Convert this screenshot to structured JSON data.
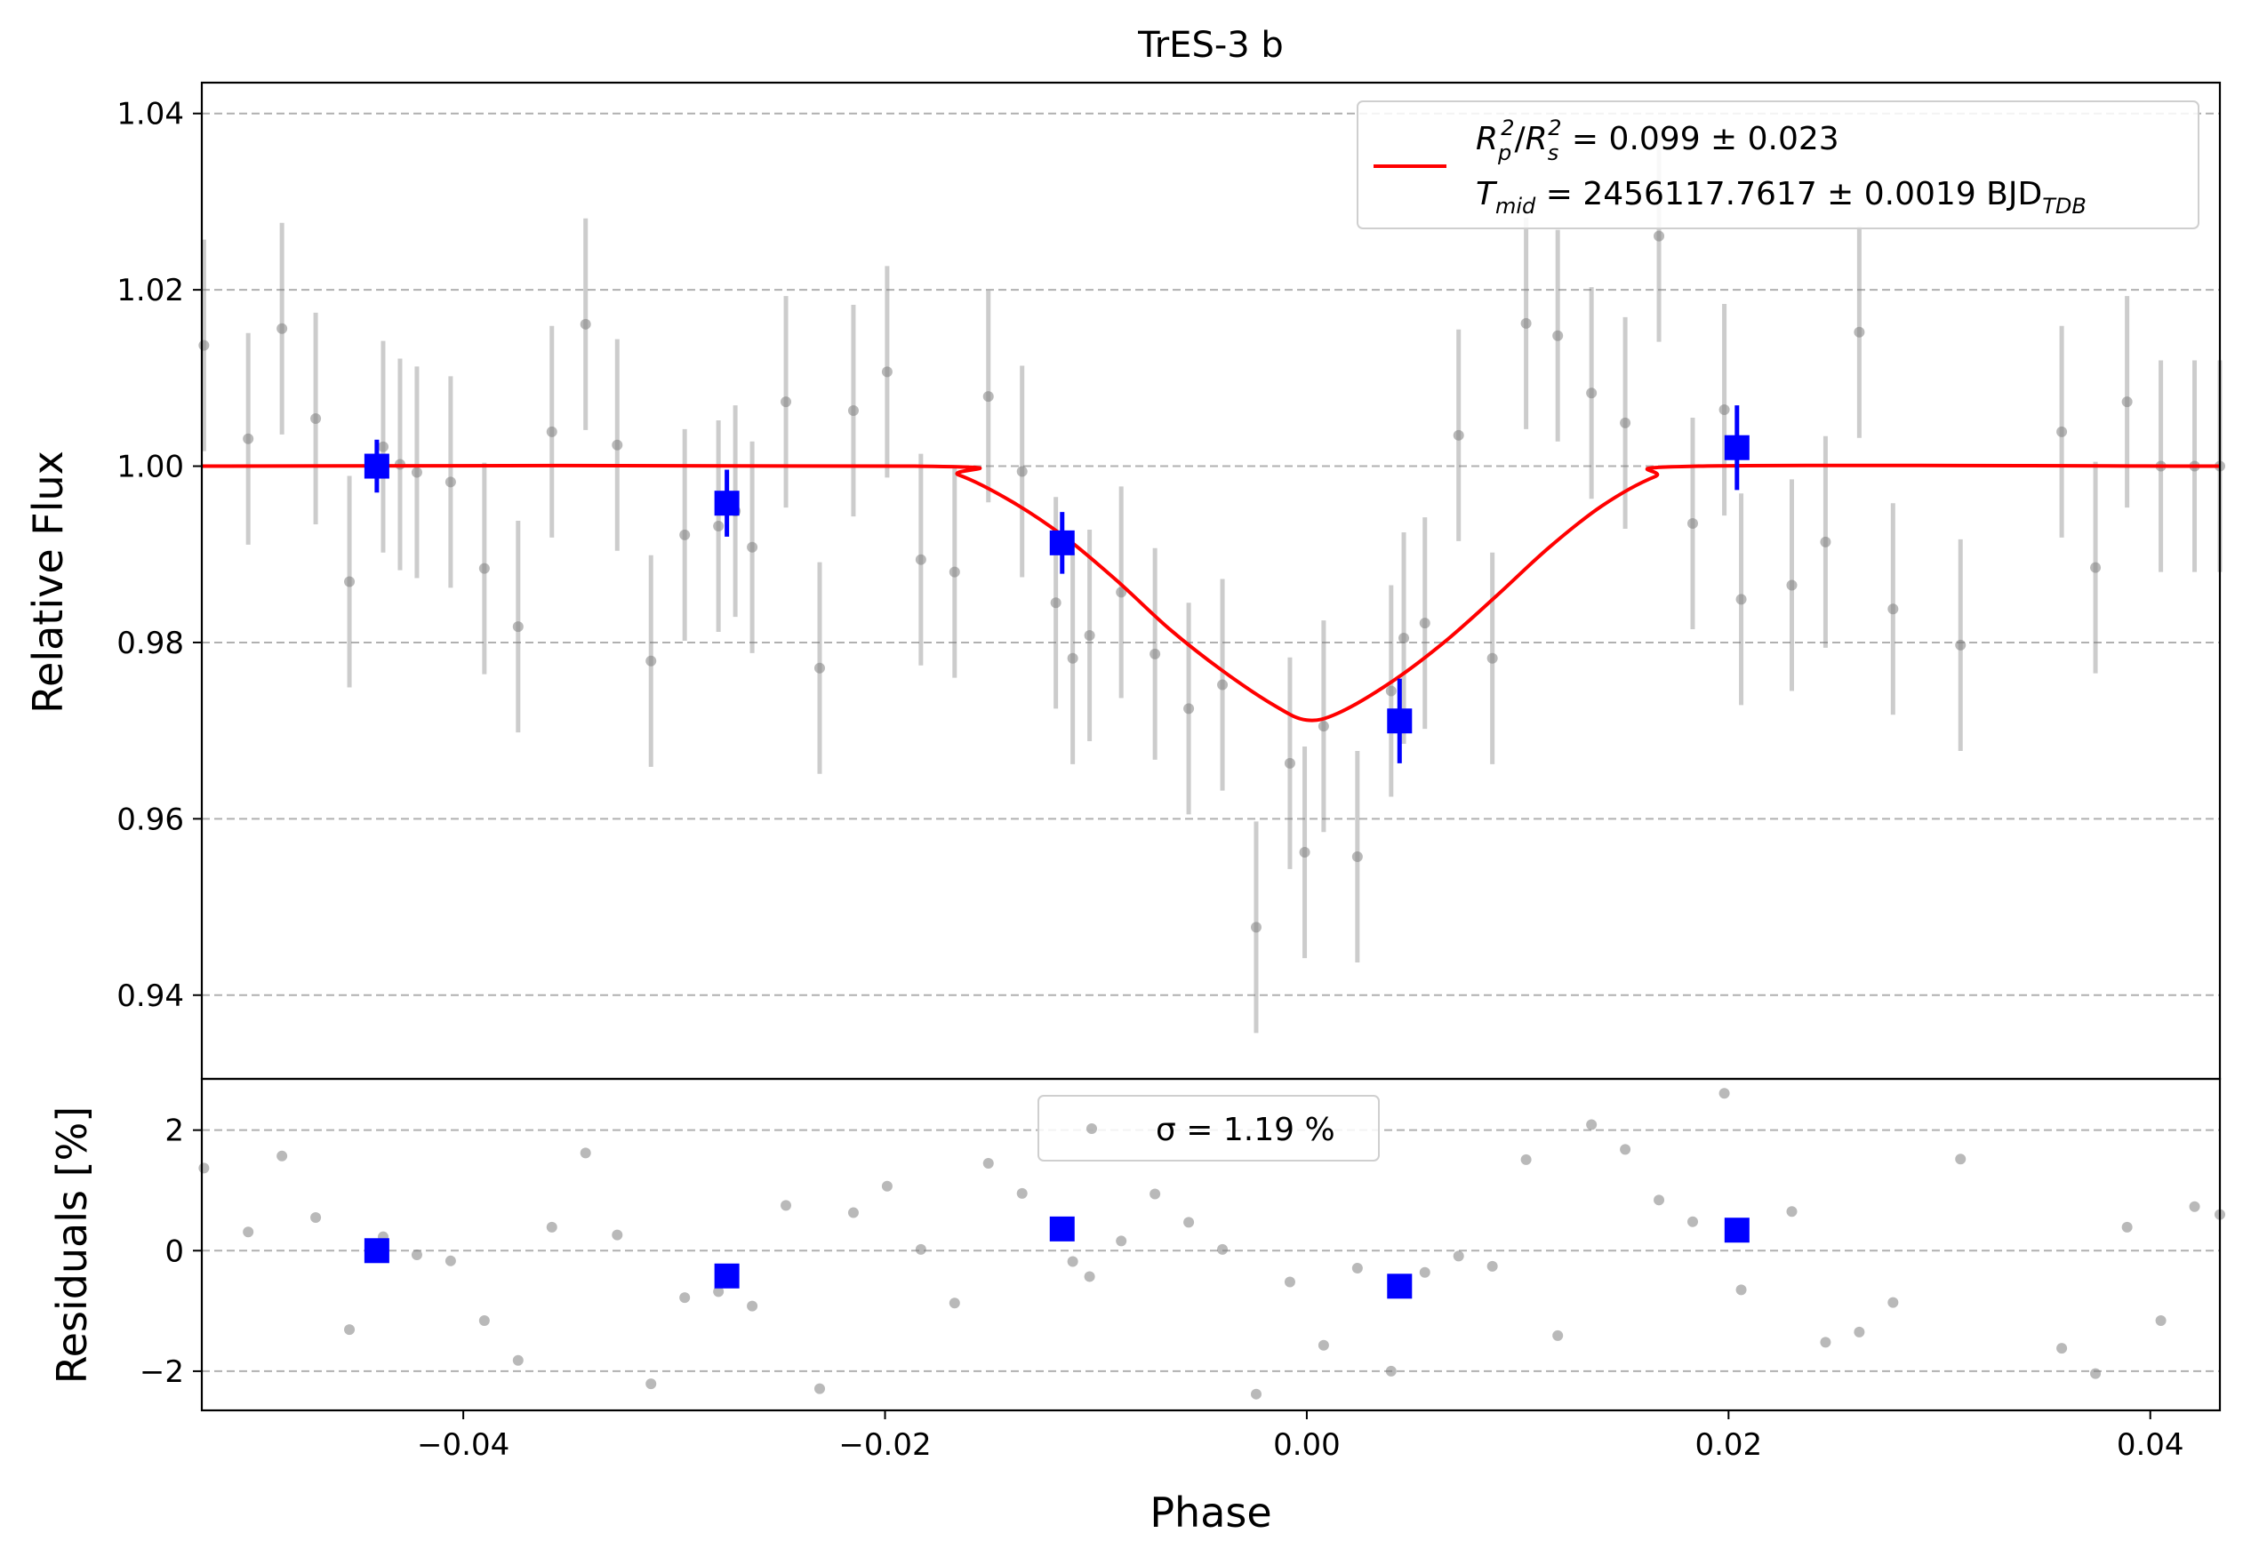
{
  "chart_data": [
    {
      "type": "scatter",
      "title": "TrES-3 b",
      "ylabel": "Relative Flux",
      "xlim": [
        -0.0524,
        0.0433
      ],
      "ylim": [
        0.9305,
        1.0435
      ],
      "yticks": [
        "0.94",
        "0.96",
        "0.98",
        "1.00",
        "1.02",
        "1.04"
      ],
      "ytick_values": [
        0.94,
        0.96,
        0.98,
        1.0,
        1.02,
        1.04
      ],
      "grid": true,
      "legend_position": "top-right",
      "legend": {
        "line_color": "#ff0000",
        "line1": {
          "a": "R",
          "a_sub": "p",
          "a_sup": "2",
          "slash": "/",
          "b": "R",
          "b_sub": "s",
          "b_sup": "2",
          "rest": " = 0.099 ± 0.023"
        },
        "line2": {
          "a": "T",
          "a_sub": "mid",
          "rest": " = 2456117.7617 ± 0.0019 BJD",
          "unit_sub": "TDB"
        }
      },
      "series": [
        {
          "role": "data",
          "color": "#808080",
          "error": 0.012,
          "x": [
            -0.0523,
            -0.0502,
            -0.0486,
            -0.047,
            -0.0454,
            -0.0438,
            -0.043,
            -0.0422,
            -0.0406,
            -0.039,
            -0.0374,
            -0.0358,
            -0.0342,
            -0.0327,
            -0.0311,
            -0.0295,
            -0.0279,
            -0.0271,
            -0.0263,
            -0.0247,
            -0.0231,
            -0.0215,
            -0.0199,
            -0.0183,
            -0.0167,
            -0.0151,
            -0.0135,
            -0.0119,
            -0.0111,
            -0.0103,
            -0.0088,
            -0.0072,
            -0.0056,
            -0.004,
            -0.0024,
            -0.0008,
            -0.0001,
            0.0008,
            0.0024,
            0.004,
            0.0046,
            0.0056,
            0.0072,
            0.0088,
            0.0104,
            0.0119,
            0.0135,
            0.0151,
            0.0167,
            0.0183,
            0.0198,
            0.0206,
            0.023,
            0.0246,
            0.0262,
            0.0278,
            0.031,
            0.0358,
            0.0374,
            0.0389,
            0.0405,
            0.0421,
            0.0433
          ],
          "y": [
            1.0137,
            1.0031,
            1.0156,
            1.0054,
            0.9869,
            1.0022,
            1.0002,
            0.9993,
            0.9982,
            0.9884,
            0.9818,
            1.0039,
            1.0161,
            1.0024,
            0.9779,
            0.9922,
            0.9932,
            0.9949,
            0.9908,
            1.0073,
            0.9771,
            1.0063,
            1.0107,
            0.9894,
            0.988,
            1.0079,
            0.9994,
            0.9845,
            0.9782,
            0.9808,
            0.9857,
            0.9787,
            0.9725,
            0.9752,
            0.9477,
            0.9663,
            0.9562,
            0.9705,
            0.9557,
            0.9745,
            0.9805,
            0.9822,
            1.0035,
            0.9782,
            1.0162,
            1.0148,
            1.0083,
            1.0049,
            1.0261,
            0.9935,
            1.0064,
            0.9849,
            0.9865,
            0.9914,
            1.0152,
            0.9838,
            0.9797,
            1.0039,
            0.9885,
            1.0073,
            1.0,
            1.0,
            1.0
          ]
        },
        {
          "role": "binned",
          "color": "#0000ff",
          "x": [
            -0.0441,
            -0.0275,
            -0.0116,
            0.0044,
            0.0204
          ],
          "y": [
            1.0,
            0.9958,
            0.9913,
            0.9711,
            1.0021
          ],
          "error": [
            0.003,
            0.0038,
            0.0035,
            0.0048,
            0.0048
          ]
        },
        {
          "role": "model",
          "color": "#ff0000",
          "x": [
            -0.0524,
            -0.0186,
            -0.0165,
            -0.014,
            -0.0115,
            -0.009,
            -0.0065,
            -0.004,
            -0.0015,
            0.0,
            0.0015,
            0.004,
            0.0065,
            0.009,
            0.0115,
            0.014,
            0.0165,
            0.0186,
            0.0433
          ],
          "y": [
            1.0,
            1.0,
            0.999,
            0.996,
            0.992,
            0.987,
            0.9815,
            0.9768,
            0.9728,
            0.9712,
            0.972,
            0.9755,
            0.98,
            0.9853,
            0.9908,
            0.9955,
            0.9988,
            1.0,
            1.0
          ]
        }
      ]
    },
    {
      "type": "scatter",
      "xlabel": "Phase",
      "ylabel": "Residuals [%]",
      "xlim": [
        -0.0524,
        0.0433
      ],
      "ylim": [
        -2.65,
        2.85
      ],
      "yticks": [
        "−2",
        "0",
        "2"
      ],
      "ytick_values": [
        -2,
        0,
        2
      ],
      "xticks": [
        "−0.04",
        "−0.02",
        "0.00",
        "0.02",
        "0.04"
      ],
      "xtick_values": [
        -0.04,
        -0.02,
        0.0,
        0.02,
        0.04
      ],
      "grid": true,
      "legend_position": "top-center",
      "legend": {
        "text": "σ = 1.19 %",
        "marker_color": "#808080"
      },
      "series": [
        {
          "role": "data",
          "color": "#808080",
          "x": [
            -0.0523,
            -0.0502,
            -0.0486,
            -0.047,
            -0.0454,
            -0.0438,
            -0.0422,
            -0.0406,
            -0.039,
            -0.0374,
            -0.0358,
            -0.0342,
            -0.0327,
            -0.0311,
            -0.0295,
            -0.0279,
            -0.0263,
            -0.0247,
            -0.0231,
            -0.0215,
            -0.0199,
            -0.0183,
            -0.0167,
            -0.0151,
            -0.0135,
            -0.0111,
            -0.0103,
            -0.0088,
            -0.0072,
            -0.0056,
            -0.004,
            -0.0024,
            -0.0008,
            0.0008,
            0.0024,
            0.004,
            0.0056,
            0.0072,
            0.0088,
            0.0104,
            0.0119,
            0.0135,
            0.0151,
            0.0167,
            0.0183,
            0.0198,
            0.0206,
            0.023,
            0.0246,
            0.0262,
            0.0278,
            0.031,
            0.0358,
            0.0374,
            0.0389,
            0.0405,
            0.0421,
            0.0433
          ],
          "y": [
            1.37,
            0.31,
            1.57,
            0.55,
            -1.31,
            0.23,
            -0.07,
            -0.17,
            -1.16,
            -1.82,
            0.39,
            1.62,
            0.26,
            -2.21,
            -0.78,
            -0.68,
            -0.92,
            0.75,
            -2.29,
            0.63,
            1.07,
            0.02,
            -0.87,
            1.45,
            0.95,
            -0.18,
            -0.43,
            0.16,
            0.94,
            0.47,
            0.02,
            -2.38,
            -0.52,
            -1.57,
            -0.29,
            -2.0,
            -0.36,
            -0.09,
            -0.26,
            1.51,
            -1.41,
            2.09,
            1.68,
            0.84,
            0.48,
            2.61,
            -0.65,
            0.65,
            -1.52,
            -1.35,
            -0.86,
            1.52,
            -1.62,
            -2.04,
            0.39,
            -1.16,
            0.73,
            0.6
          ]
        },
        {
          "role": "binned",
          "color": "#0000ff",
          "x": [
            -0.0441,
            -0.0275,
            -0.0116,
            0.0044,
            0.0204
          ],
          "y": [
            0.0,
            -0.42,
            0.36,
            -0.59,
            0.34
          ]
        }
      ]
    }
  ]
}
